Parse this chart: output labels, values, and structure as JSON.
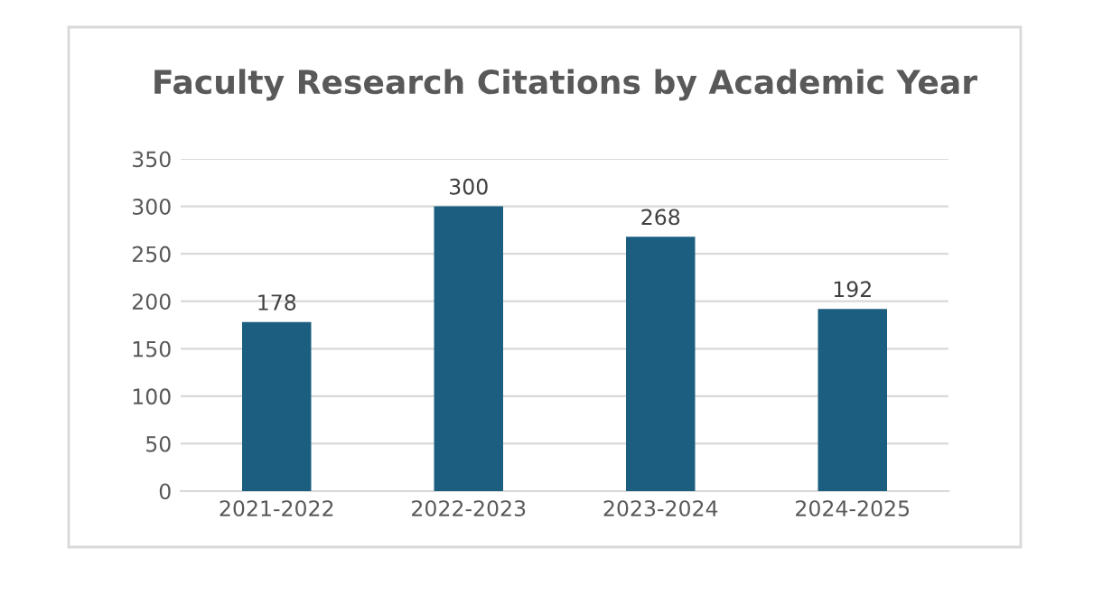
{
  "chart_data": {
    "type": "bar",
    "title": "Faculty Research Citations by Academic Year",
    "categories": [
      "2021-2022",
      "2022-2023",
      "2023-2024",
      "2024-2025"
    ],
    "values": [
      178,
      300,
      268,
      192
    ],
    "color": "#1b5e80",
    "ylim": [
      0,
      350
    ],
    "yticks": [
      0,
      50,
      100,
      150,
      200,
      250,
      300,
      350
    ],
    "grid": "y",
    "data_labels": true
  }
}
